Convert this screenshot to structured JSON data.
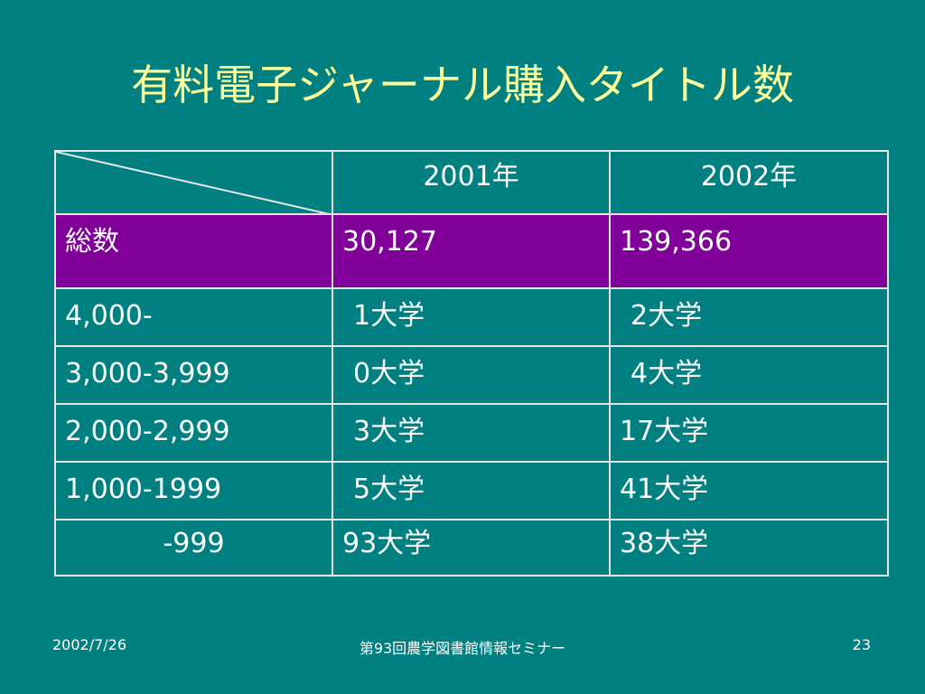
{
  "slide": {
    "title": "有料電子ジャーナル購入タイトル数"
  },
  "table": {
    "columns": [
      "2001年",
      "2002年"
    ],
    "rows": [
      {
        "label": "総数",
        "y2001": "30,127",
        "y2002": "139,366"
      },
      {
        "label": "4,000-",
        "y2001": "1大学",
        "y2002": "2大学"
      },
      {
        "label": "3,000-3,999",
        "y2001": "0大学",
        "y2002": "4大学"
      },
      {
        "label": "2,000-2,999",
        "y2001": "3大学",
        "y2002": "17大学"
      },
      {
        "label": "1,000-1999",
        "y2001": "5大学",
        "y2002": "41大学"
      },
      {
        "label": "-999",
        "y2001": "93大学",
        "y2002": "38大学"
      }
    ],
    "colors": {
      "background": "#008080",
      "total_row": "#800099",
      "title": "#ffff99",
      "text": "#ffffff",
      "border": "#e6e6e6"
    }
  },
  "footer": {
    "date": "2002/7/26",
    "seminar": "第93回農学図書館情報セミナー",
    "page": "23"
  }
}
